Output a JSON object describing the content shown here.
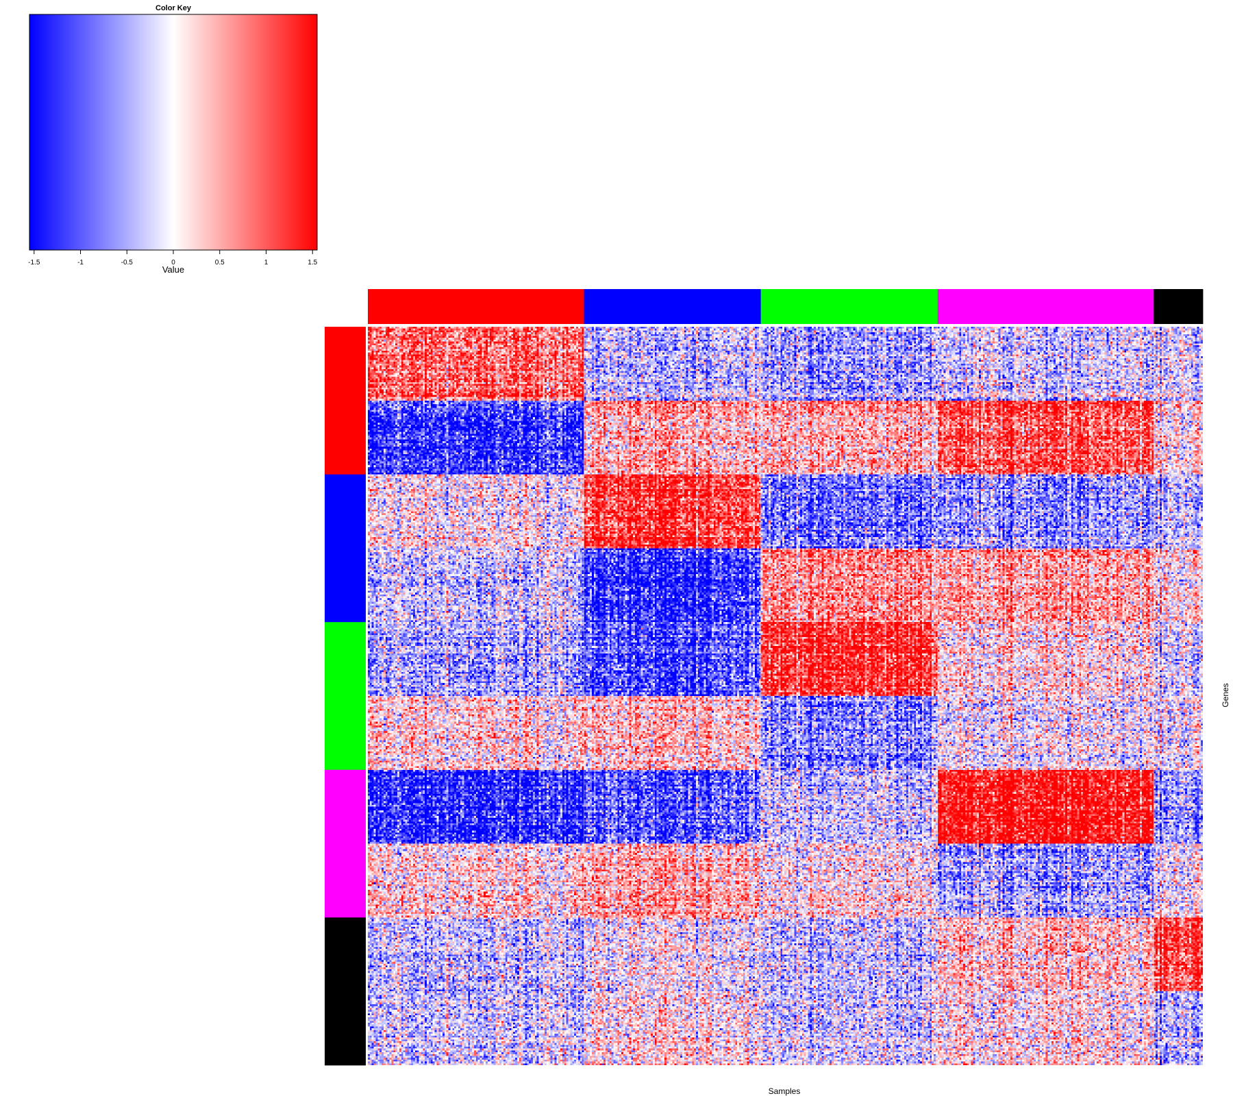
{
  "chart_data": {
    "type": "heatmap",
    "title": "",
    "xlabel": "Samples",
    "ylabel": "Genes",
    "color_key": {
      "title": "Color Key",
      "xlabel": "Value",
      "range": [
        -1.55,
        1.55
      ],
      "ticks": [
        -1.5,
        -1,
        -0.5,
        0,
        0.5,
        1,
        1.5
      ],
      "tick_labels": [
        "-1.5",
        "-1",
        "-0.5",
        "0",
        "0.5",
        "1",
        "1.5"
      ],
      "low_color": "#0000ff",
      "mid_color": "#ffffff",
      "high_color": "#ff0000"
    },
    "column_groups": [
      {
        "color": "#ff0000",
        "count": 110
      },
      {
        "color": "#0000ff",
        "count": 90
      },
      {
        "color": "#00ff00",
        "count": 90
      },
      {
        "color": "#ff00ff",
        "count": 110
      },
      {
        "color": "#000000",
        "count": 25
      }
    ],
    "row_groups": [
      {
        "color": "#ff0000",
        "count": 80
      },
      {
        "color": "#0000ff",
        "count": 80
      },
      {
        "color": "#00ff00",
        "count": 80
      },
      {
        "color": "#ff00ff",
        "count": 80
      },
      {
        "color": "#000000",
        "count": 80
      }
    ],
    "block_mean_values": [
      [
        0.9,
        -0.4,
        -0.6,
        -0.3,
        -0.2
      ],
      [
        -1.2,
        0.5,
        0.5,
        1.1,
        0.2
      ],
      [
        0.1,
        1.3,
        -0.8,
        -0.6,
        -0.3
      ],
      [
        -0.3,
        -1.3,
        0.7,
        0.6,
        0.2
      ],
      [
        -0.5,
        -1.1,
        1.3,
        0.2,
        -0.2
      ],
      [
        0.25,
        0.4,
        -0.7,
        0.0,
        0.0
      ],
      [
        -1.3,
        -1.0,
        -0.3,
        1.55,
        -0.6
      ],
      [
        0.2,
        0.5,
        0.1,
        -0.6,
        0.0
      ],
      [
        -0.3,
        0.0,
        -0.3,
        0.4,
        1.2
      ],
      [
        -0.2,
        0.2,
        -0.2,
        0.2,
        -0.4
      ]
    ]
  }
}
